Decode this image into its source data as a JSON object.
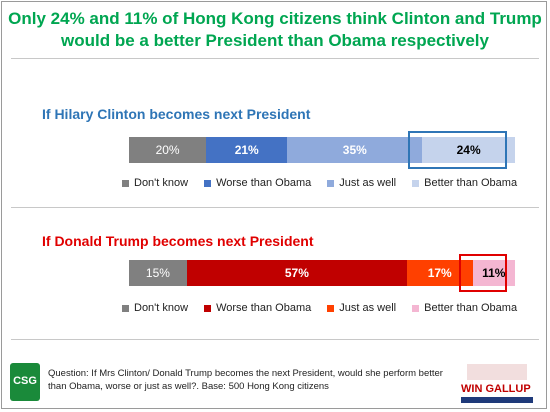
{
  "title": "Only 24% and 11% of Hong Kong citizens think Clinton and Trump would be a better President than Obama respectively",
  "chart_data": [
    {
      "type": "bar",
      "orientation": "horizontal-stacked",
      "title": "If Hilary Clinton becomes next President",
      "title_color": "#2e75b6",
      "unit": "%",
      "series": [
        {
          "name": "Don't know",
          "value": 20,
          "label": "20%",
          "color": "#808080"
        },
        {
          "name": "Worse than Obama",
          "value": 21,
          "label": "21%",
          "color": "#4472c4"
        },
        {
          "name": "Just as well",
          "value": 35,
          "label": "35%",
          "color": "#8faadc"
        },
        {
          "name": "Better than Obama",
          "value": 24,
          "label": "24%",
          "color": "#c5d3ec",
          "highlight": true,
          "highlight_color": "#2e75b6"
        }
      ],
      "legend_position": "bottom"
    },
    {
      "type": "bar",
      "orientation": "horizontal-stacked",
      "title": "If Donald Trump becomes next President",
      "title_color": "#e00000",
      "unit": "%",
      "series": [
        {
          "name": "Don't know",
          "value": 15,
          "label": "15%",
          "color": "#808080"
        },
        {
          "name": "Worse than Obama",
          "value": 57,
          "label": "57%",
          "color": "#c00000"
        },
        {
          "name": "Just as well",
          "value": 17,
          "label": "17%",
          "color": "#ff4000"
        },
        {
          "name": "Better than Obama",
          "value": 11,
          "label": "11%",
          "color": "#f4b6d2",
          "highlight": true,
          "highlight_color": "#e00000"
        }
      ],
      "legend_position": "bottom"
    }
  ],
  "footer": {
    "logo_text": "CSG",
    "question": "Question: If Mrs Clinton/ Donald Trump becomes the next President, would she perform better than Obama, worse or just as well?. Base:  500 Hong Kong citizens",
    "logo_right": "WIN GALLUP"
  },
  "colors": {
    "title": "#00a651",
    "divider": "#c8c8c8"
  }
}
